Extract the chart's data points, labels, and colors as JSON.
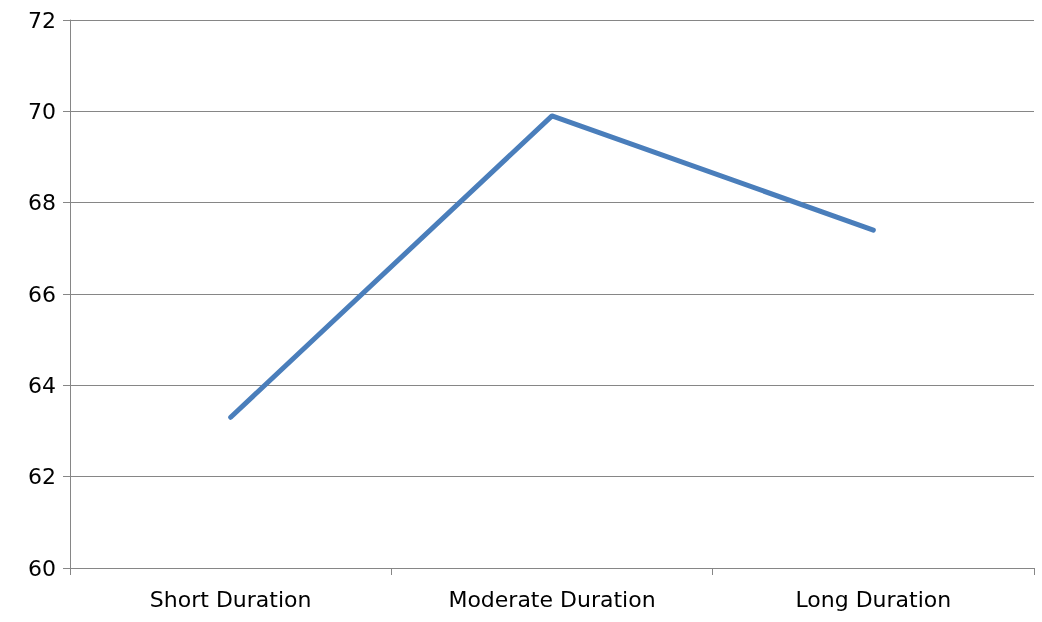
{
  "chart_data": {
    "type": "line",
    "categories": [
      "Short Duration",
      "Moderate Duration",
      "Long Duration"
    ],
    "series": [
      {
        "color": "#4a7ebb",
        "values": [
          63.3,
          69.9,
          67.4
        ]
      }
    ],
    "ylim": [
      60,
      72
    ],
    "yticks": [
      60,
      62,
      64,
      66,
      68,
      70,
      72
    ],
    "grid": "y",
    "marker": "none",
    "line_style": "solid"
  }
}
